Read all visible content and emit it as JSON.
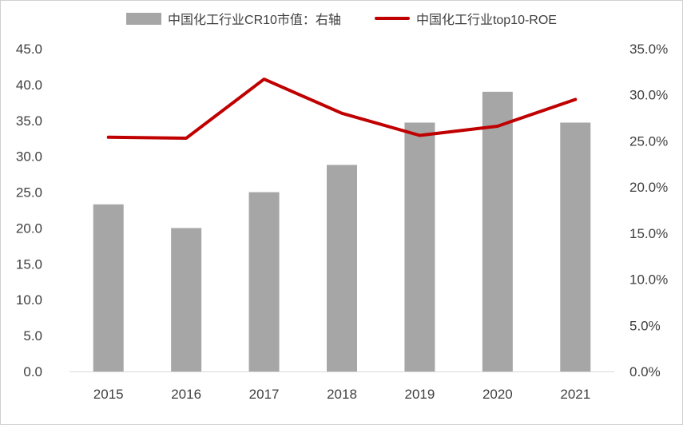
{
  "chart_data": {
    "type": "bar",
    "categories": [
      "2015",
      "2016",
      "2017",
      "2018",
      "2019",
      "2020",
      "2021"
    ],
    "series": [
      {
        "name": "中国化工行业CR10市值：右轴",
        "kind": "bar",
        "axis": "left",
        "color": "#a6a6a6",
        "values": [
          23.3,
          20.0,
          25.0,
          28.8,
          34.7,
          39.0,
          34.7
        ]
      },
      {
        "name": "中国化工行业top10-ROE",
        "kind": "line",
        "axis": "right",
        "color": "#c00000",
        "values": [
          25.4,
          25.3,
          31.7,
          28.0,
          25.6,
          26.6,
          29.5
        ]
      }
    ],
    "y_left": {
      "ylim": [
        0,
        45
      ],
      "ticks": [
        "0.0",
        "5.0",
        "10.0",
        "15.0",
        "20.0",
        "25.0",
        "30.0",
        "35.0",
        "40.0",
        "45.0"
      ]
    },
    "y_right": {
      "ylim": [
        0,
        35
      ],
      "ticks": [
        "0.0%",
        "5.0%",
        "10.0%",
        "15.0%",
        "20.0%",
        "25.0%",
        "30.0%",
        "35.0%"
      ]
    },
    "grid": false,
    "legend": "top"
  }
}
